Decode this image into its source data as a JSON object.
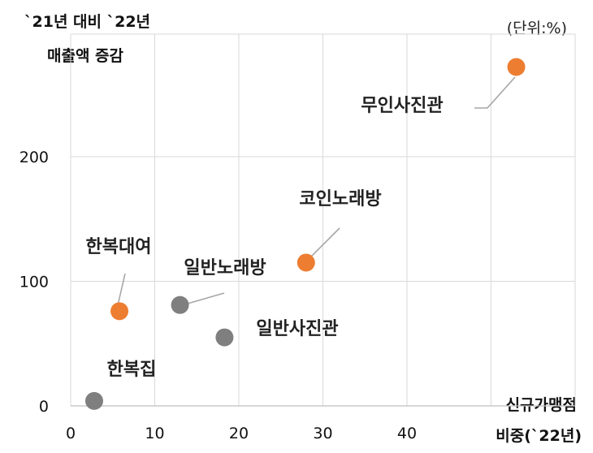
{
  "chart_data": {
    "type": "scatter",
    "ylabel_lines": [
      "`21년 대비 `22년",
      "매출액 증감"
    ],
    "xlabel_lines": [
      "신규가맹점",
      "비중(`22년)"
    ],
    "unit": "(단위:%)",
    "xlim": [
      0,
      50
    ],
    "ylim": [
      0,
      290
    ],
    "xticks": [
      0,
      10,
      20,
      30,
      40
    ],
    "yticks": [
      0,
      100,
      200
    ],
    "grid": true,
    "colors": {
      "highlight": "#ED7D31",
      "normal": "#7F7F7F",
      "grid": "#D9D9D9",
      "leader": "#A6A6A6"
    },
    "points": [
      {
        "label": "한복집",
        "x": 2.8,
        "y": 4,
        "group": "normal"
      },
      {
        "label": "한복대여",
        "x": 5.8,
        "y": 76,
        "group": "highlight"
      },
      {
        "label": "일반노래방",
        "x": 13,
        "y": 81,
        "group": "normal"
      },
      {
        "label": "일반사진관",
        "x": 18.3,
        "y": 55,
        "group": "normal"
      },
      {
        "label": "코인노래방",
        "x": 28,
        "y": 115,
        "group": "highlight"
      },
      {
        "label": "무인사진관",
        "x": 53,
        "y": 272,
        "group": "highlight"
      }
    ]
  }
}
